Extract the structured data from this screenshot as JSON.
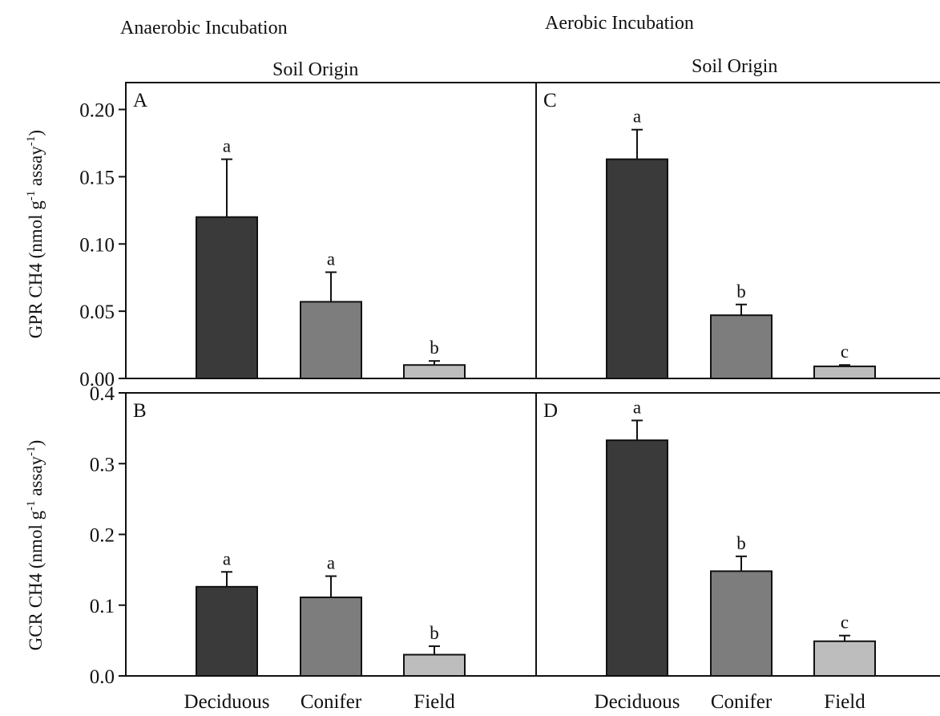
{
  "headers": {
    "left": "Anaerobic Incubation",
    "right": "Aerobic Incubation",
    "left_sub": "Soil Origin",
    "right_sub": "Soil Origin"
  },
  "y_labels": {
    "top": {
      "main": "GPR CH4 (nmol g",
      "sup1": "-1",
      "mid": " assay",
      "sup2": "-1",
      "end": ")"
    },
    "bottom": {
      "main": "GCR CH4 (nmol g",
      "sup1": "-1",
      "mid": " assay",
      "sup2": "-1",
      "end": ")"
    }
  },
  "colors": {
    "Deciduous": "#3a3a3a",
    "Conifer": "#7d7d7d",
    "Field": "#bdbdbd"
  },
  "chart_data": [
    {
      "type": "bar",
      "panel": "A",
      "categories": [
        "Deciduous",
        "Conifer",
        "Field"
      ],
      "values": [
        0.12,
        0.057,
        0.01
      ],
      "errors": [
        0.043,
        0.022,
        0.003
      ],
      "letters": [
        "a",
        "a",
        "b"
      ],
      "ylim": [
        0,
        0.22
      ],
      "yticks": [
        0.0,
        0.05,
        0.1,
        0.15,
        0.2
      ],
      "ytick_labels": [
        "0.00",
        "0.05",
        "0.10",
        "0.15",
        "0.20"
      ]
    },
    {
      "type": "bar",
      "panel": "C",
      "categories": [
        "Deciduous",
        "Conifer",
        "Field"
      ],
      "values": [
        0.163,
        0.047,
        0.009
      ],
      "errors": [
        0.022,
        0.008,
        0.001
      ],
      "letters": [
        "a",
        "b",
        "c"
      ],
      "ylim": [
        0,
        0.22
      ],
      "yticks": [
        0.0,
        0.05,
        0.1,
        0.15,
        0.2
      ],
      "ytick_labels": []
    },
    {
      "type": "bar",
      "panel": "B",
      "categories": [
        "Deciduous",
        "Conifer",
        "Field"
      ],
      "values": [
        0.126,
        0.111,
        0.03
      ],
      "errors": [
        0.021,
        0.03,
        0.012
      ],
      "letters": [
        "a",
        "a",
        "b"
      ],
      "ylim": [
        0,
        0.4
      ],
      "yticks": [
        0.0,
        0.1,
        0.2,
        0.3,
        0.4
      ],
      "ytick_labels": [
        "0.0",
        "0.1",
        "0.2",
        "0.3",
        "0.4"
      ],
      "xtick_labels": [
        "Deciduous",
        "Conifer",
        "Field"
      ]
    },
    {
      "type": "bar",
      "panel": "D",
      "categories": [
        "Deciduous",
        "Conifer",
        "Field"
      ],
      "values": [
        0.333,
        0.148,
        0.049
      ],
      "errors": [
        0.028,
        0.021,
        0.008
      ],
      "letters": [
        "a",
        "b",
        "c"
      ],
      "ylim": [
        0,
        0.4
      ],
      "yticks": [
        0.0,
        0.1,
        0.2,
        0.3,
        0.4
      ],
      "ytick_labels": [],
      "xtick_labels": [
        "Deciduous",
        "Conifer",
        "Field"
      ]
    }
  ]
}
